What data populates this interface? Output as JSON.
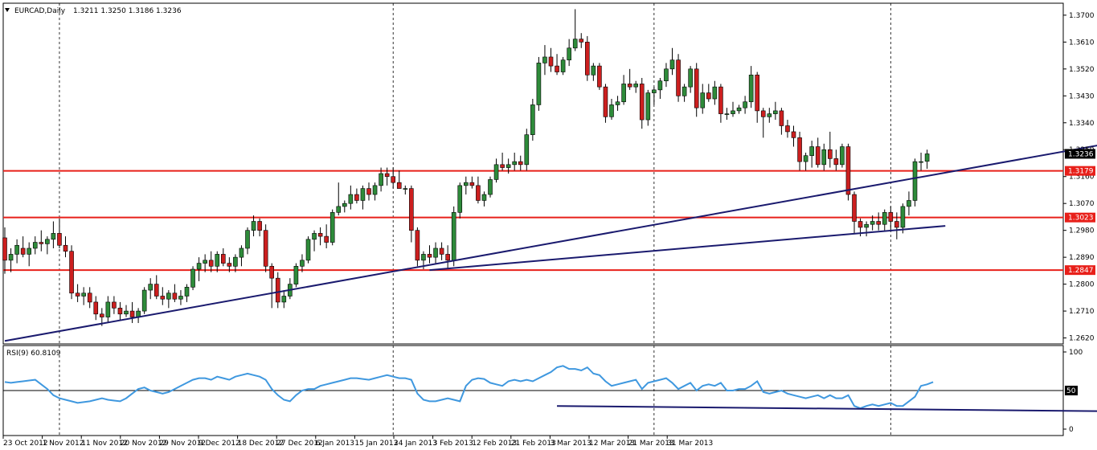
{
  "window": {
    "title": "EURCAD,Daily",
    "ohlc_readout": "1.3211 1.3250 1.3186 1.3236"
  },
  "colors": {
    "bull": "#2e8b3a",
    "bear": "#cc1f1f",
    "wick": "#000000",
    "hline": "#e8201a",
    "trendline": "#1a1a6e",
    "rsi": "#3f98df",
    "label_red_bg": "#e8201a",
    "label_current_bg": "#000000"
  },
  "chart_data": [
    {
      "type": "candlestick",
      "title": "EURCAD,Daily",
      "ylim": [
        1.26,
        1.374
      ],
      "y_ticks": [
        "1.3700",
        "1.3610",
        "1.3520",
        "1.3430",
        "1.3340",
        "1.3250",
        "1.3160",
        "1.3070",
        "1.2980",
        "1.2890",
        "1.2800",
        "1.2710",
        "1.2620"
      ],
      "x_labels": [
        "23 Oct 2012",
        "1 Nov 2012",
        "11 Nov 2012",
        "20 Nov 2012",
        "29 Nov 2012",
        "9 Dec 2012",
        "18 Dec 2012",
        "27 Dec 2012",
        "6 Jan 2013",
        "15 Jan 2013",
        "24 Jan 2013",
        "3 Feb 2013",
        "12 Feb 2013",
        "21 Feb 2013",
        "3 Mar 2013",
        "12 Mar 2013",
        "21 Mar 2013",
        "31 Mar 2013"
      ],
      "grid": "vertical dashed",
      "horizontal_levels": [
        {
          "label": "1.3179",
          "value": 1.3179
        },
        {
          "label": "1.3023",
          "value": 1.3023
        },
        {
          "label": "1.2847",
          "value": 1.2847
        }
      ],
      "current_price": {
        "label": "1.3236",
        "value": 1.3236
      },
      "trendlines": [
        {
          "from": [
            0,
            1.261
          ],
          "to": [
            223,
            1.342
          ]
        },
        {
          "from": [
            70,
            1.2847
          ],
          "to": [
            155,
            1.2995
          ]
        }
      ],
      "ohlc": [
        [
          1.2955,
          1.299,
          1.2835,
          1.288
        ],
        [
          1.288,
          1.292,
          1.284,
          1.29
        ],
        [
          1.29,
          1.295,
          1.287,
          1.293
        ],
        [
          1.292,
          1.296,
          1.289,
          1.29
        ],
        [
          1.29,
          1.294,
          1.286,
          1.292
        ],
        [
          1.292,
          1.296,
          1.29,
          1.294
        ],
        [
          1.294,
          1.298,
          1.291,
          1.2935
        ],
        [
          1.2935,
          1.296,
          1.29,
          1.295
        ],
        [
          1.295,
          1.301,
          1.292,
          1.297
        ],
        [
          1.297,
          1.302,
          1.292,
          1.293
        ],
        [
          1.293,
          1.296,
          1.289,
          1.291
        ],
        [
          1.291,
          1.293,
          1.275,
          1.277
        ],
        [
          1.277,
          1.28,
          1.274,
          1.276
        ],
        [
          1.276,
          1.279,
          1.273,
          1.277
        ],
        [
          1.277,
          1.279,
          1.272,
          1.274
        ],
        [
          1.274,
          1.276,
          1.268,
          1.27
        ],
        [
          1.27,
          1.272,
          1.266,
          1.269
        ],
        [
          1.269,
          1.276,
          1.267,
          1.274
        ],
        [
          1.274,
          1.276,
          1.27,
          1.272
        ],
        [
          1.272,
          1.274,
          1.268,
          1.27
        ],
        [
          1.27,
          1.273,
          1.269,
          1.271
        ],
        [
          1.271,
          1.274,
          1.267,
          1.269
        ],
        [
          1.269,
          1.272,
          1.267,
          1.271
        ],
        [
          1.271,
          1.279,
          1.27,
          1.278
        ],
        [
          1.278,
          1.282,
          1.275,
          1.28
        ],
        [
          1.28,
          1.283,
          1.275,
          1.276
        ],
        [
          1.276,
          1.279,
          1.273,
          1.275
        ],
        [
          1.275,
          1.278,
          1.272,
          1.277
        ],
        [
          1.277,
          1.28,
          1.274,
          1.275
        ],
        [
          1.275,
          1.278,
          1.273,
          1.276
        ],
        [
          1.276,
          1.28,
          1.274,
          1.279
        ],
        [
          1.279,
          1.286,
          1.278,
          1.285
        ],
        [
          1.285,
          1.289,
          1.281,
          1.287
        ],
        [
          1.287,
          1.29,
          1.284,
          1.288
        ],
        [
          1.288,
          1.291,
          1.284,
          1.286
        ],
        [
          1.286,
          1.291,
          1.284,
          1.29
        ],
        [
          1.29,
          1.292,
          1.286,
          1.287
        ],
        [
          1.287,
          1.289,
          1.284,
          1.286
        ],
        [
          1.286,
          1.29,
          1.284,
          1.289
        ],
        [
          1.289,
          1.293,
          1.286,
          1.292
        ],
        [
          1.292,
          1.299,
          1.29,
          1.298
        ],
        [
          1.298,
          1.303,
          1.296,
          1.301
        ],
        [
          1.301,
          1.302,
          1.296,
          1.298
        ],
        [
          1.298,
          1.3,
          1.284,
          1.286
        ],
        [
          1.286,
          1.287,
          1.272,
          1.282
        ],
        [
          1.282,
          1.284,
          1.272,
          1.274
        ],
        [
          1.274,
          1.278,
          1.272,
          1.276
        ],
        [
          1.276,
          1.282,
          1.275,
          1.28
        ],
        [
          1.28,
          1.287,
          1.279,
          1.286
        ],
        [
          1.286,
          1.29,
          1.284,
          1.288
        ],
        [
          1.288,
          1.296,
          1.287,
          1.295
        ],
        [
          1.295,
          1.298,
          1.291,
          1.297
        ],
        [
          1.297,
          1.299,
          1.293,
          1.296
        ],
        [
          1.296,
          1.3,
          1.292,
          1.294
        ],
        [
          1.294,
          1.305,
          1.293,
          1.304
        ],
        [
          1.304,
          1.314,
          1.303,
          1.306
        ],
        [
          1.306,
          1.308,
          1.304,
          1.307
        ],
        [
          1.307,
          1.313,
          1.305,
          1.31
        ],
        [
          1.31,
          1.312,
          1.307,
          1.308
        ],
        [
          1.308,
          1.313,
          1.305,
          1.312
        ],
        [
          1.312,
          1.314,
          1.308,
          1.31
        ],
        [
          1.31,
          1.314,
          1.308,
          1.313
        ],
        [
          1.313,
          1.319,
          1.311,
          1.317
        ],
        [
          1.317,
          1.319,
          1.313,
          1.316
        ],
        [
          1.316,
          1.319,
          1.312,
          1.314
        ],
        [
          1.314,
          1.318,
          1.312,
          1.312
        ],
        [
          1.312,
          1.313,
          1.31,
          1.312
        ],
        [
          1.312,
          1.313,
          1.294,
          1.298
        ],
        [
          1.298,
          1.299,
          1.286,
          1.288
        ],
        [
          1.288,
          1.291,
          1.285,
          1.29
        ],
        [
          1.29,
          1.293,
          1.287,
          1.289
        ],
        [
          1.289,
          1.294,
          1.287,
          1.292
        ],
        [
          1.292,
          1.294,
          1.288,
          1.29
        ],
        [
          1.29,
          1.293,
          1.285,
          1.288
        ],
        [
          1.288,
          1.306,
          1.286,
          1.304
        ],
        [
          1.304,
          1.314,
          1.302,
          1.313
        ],
        [
          1.313,
          1.316,
          1.31,
          1.314
        ],
        [
          1.314,
          1.316,
          1.312,
          1.313
        ],
        [
          1.313,
          1.316,
          1.307,
          1.308
        ],
        [
          1.308,
          1.311,
          1.306,
          1.31
        ],
        [
          1.31,
          1.316,
          1.309,
          1.315
        ],
        [
          1.315,
          1.322,
          1.314,
          1.32
        ],
        [
          1.32,
          1.324,
          1.318,
          1.319
        ],
        [
          1.319,
          1.322,
          1.317,
          1.32
        ],
        [
          1.32,
          1.324,
          1.318,
          1.321
        ],
        [
          1.321,
          1.323,
          1.318,
          1.32
        ],
        [
          1.32,
          1.332,
          1.318,
          1.33
        ],
        [
          1.33,
          1.342,
          1.328,
          1.34
        ],
        [
          1.34,
          1.356,
          1.338,
          1.354
        ],
        [
          1.354,
          1.36,
          1.35,
          1.356
        ],
        [
          1.356,
          1.359,
          1.351,
          1.353
        ],
        [
          1.353,
          1.357,
          1.35,
          1.351
        ],
        [
          1.351,
          1.356,
          1.35,
          1.355
        ],
        [
          1.355,
          1.362,
          1.353,
          1.359
        ],
        [
          1.359,
          1.372,
          1.358,
          1.362
        ],
        [
          1.362,
          1.364,
          1.359,
          1.361
        ],
        [
          1.361,
          1.363,
          1.348,
          1.35
        ],
        [
          1.35,
          1.354,
          1.348,
          1.353
        ],
        [
          1.353,
          1.354,
          1.345,
          1.346
        ],
        [
          1.346,
          1.347,
          1.334,
          1.336
        ],
        [
          1.336,
          1.342,
          1.335,
          1.34
        ],
        [
          1.34,
          1.343,
          1.338,
          1.341
        ],
        [
          1.341,
          1.35,
          1.34,
          1.347
        ],
        [
          1.347,
          1.352,
          1.345,
          1.346
        ],
        [
          1.346,
          1.348,
          1.344,
          1.347
        ],
        [
          1.347,
          1.349,
          1.332,
          1.335
        ],
        [
          1.335,
          1.345,
          1.333,
          1.344
        ],
        [
          1.344,
          1.346,
          1.34,
          1.345
        ],
        [
          1.345,
          1.349,
          1.342,
          1.348
        ],
        [
          1.348,
          1.354,
          1.346,
          1.352
        ],
        [
          1.352,
          1.359,
          1.35,
          1.355
        ],
        [
          1.355,
          1.357,
          1.341,
          1.343
        ],
        [
          1.343,
          1.347,
          1.341,
          1.346
        ],
        [
          1.346,
          1.353,
          1.344,
          1.352
        ],
        [
          1.352,
          1.354,
          1.336,
          1.339
        ],
        [
          1.339,
          1.347,
          1.337,
          1.344
        ],
        [
          1.344,
          1.347,
          1.341,
          1.342
        ],
        [
          1.342,
          1.348,
          1.34,
          1.346
        ],
        [
          1.346,
          1.347,
          1.334,
          1.337
        ],
        [
          1.337,
          1.339,
          1.335,
          1.337
        ],
        [
          1.337,
          1.341,
          1.336,
          1.338
        ],
        [
          1.338,
          1.34,
          1.337,
          1.339
        ],
        [
          1.339,
          1.343,
          1.337,
          1.341
        ],
        [
          1.341,
          1.353,
          1.339,
          1.35
        ],
        [
          1.35,
          1.351,
          1.334,
          1.338
        ],
        [
          1.338,
          1.339,
          1.329,
          1.336
        ],
        [
          1.336,
          1.339,
          1.334,
          1.337
        ],
        [
          1.337,
          1.341,
          1.335,
          1.338
        ],
        [
          1.338,
          1.339,
          1.33,
          1.333
        ],
        [
          1.333,
          1.335,
          1.329,
          1.331
        ],
        [
          1.331,
          1.333,
          1.326,
          1.329
        ],
        [
          1.329,
          1.331,
          1.318,
          1.321
        ],
        [
          1.321,
          1.324,
          1.318,
          1.323
        ],
        [
          1.323,
          1.328,
          1.319,
          1.326
        ],
        [
          1.326,
          1.329,
          1.319,
          1.32
        ],
        [
          1.32,
          1.327,
          1.318,
          1.325
        ],
        [
          1.325,
          1.331,
          1.319,
          1.322
        ],
        [
          1.322,
          1.325,
          1.318,
          1.32
        ],
        [
          1.32,
          1.327,
          1.319,
          1.326
        ],
        [
          1.326,
          1.327,
          1.308,
          1.31
        ],
        [
          1.31,
          1.311,
          1.297,
          1.301
        ],
        [
          1.301,
          1.302,
          1.296,
          1.299
        ],
        [
          1.299,
          1.301,
          1.296,
          1.3
        ],
        [
          1.3,
          1.303,
          1.298,
          1.301
        ],
        [
          1.301,
          1.304,
          1.298,
          1.3
        ],
        [
          1.3,
          1.305,
          1.298,
          1.304
        ],
        [
          1.304,
          1.306,
          1.298,
          1.301
        ],
        [
          1.301,
          1.304,
          1.295,
          1.299
        ],
        [
          1.299,
          1.307,
          1.297,
          1.306
        ],
        [
          1.306,
          1.311,
          1.303,
          1.308
        ],
        [
          1.308,
          1.322,
          1.306,
          1.321
        ],
        [
          1.321,
          1.324,
          1.318,
          1.321
        ],
        [
          1.3211,
          1.325,
          1.3186,
          1.3236
        ]
      ]
    },
    {
      "type": "line",
      "title": "RSI(9) 60.8109",
      "ylim": [
        0,
        100
      ],
      "y_ticks": [
        "100",
        "50",
        "0"
      ],
      "levels": [
        50
      ],
      "trendline": {
        "from": [
          91,
          30
        ],
        "to": [
          223,
          20
        ]
      },
      "rsi": [
        61,
        60,
        61,
        62,
        63,
        64,
        58,
        52,
        44,
        40,
        38,
        36,
        34,
        35,
        36,
        38,
        40,
        38,
        37,
        36,
        40,
        46,
        52,
        54,
        50,
        48,
        46,
        48,
        52,
        56,
        60,
        64,
        66,
        66,
        64,
        68,
        66,
        64,
        68,
        70,
        72,
        70,
        68,
        64,
        52,
        44,
        38,
        36,
        44,
        50,
        52,
        52,
        56,
        58,
        60,
        62,
        64,
        66,
        66,
        65,
        64,
        66,
        68,
        70,
        68,
        66,
        66,
        64,
        46,
        38,
        36,
        36,
        38,
        40,
        38,
        36,
        56,
        64,
        66,
        65,
        60,
        58,
        56,
        62,
        64,
        62,
        64,
        62,
        66,
        70,
        74,
        80,
        82,
        78,
        78,
        76,
        80,
        72,
        70,
        62,
        56,
        58,
        60,
        62,
        64,
        52,
        60,
        62,
        64,
        66,
        60,
        52,
        56,
        60,
        50,
        56,
        58,
        56,
        60,
        50,
        50,
        52,
        52,
        56,
        62,
        48,
        46,
        48,
        50,
        46,
        44,
        42,
        40,
        42,
        44,
        40,
        44,
        40,
        40,
        44,
        30,
        27,
        30,
        32,
        30,
        32,
        34,
        30,
        30,
        36,
        42,
        56,
        58,
        61
      ]
    }
  ]
}
